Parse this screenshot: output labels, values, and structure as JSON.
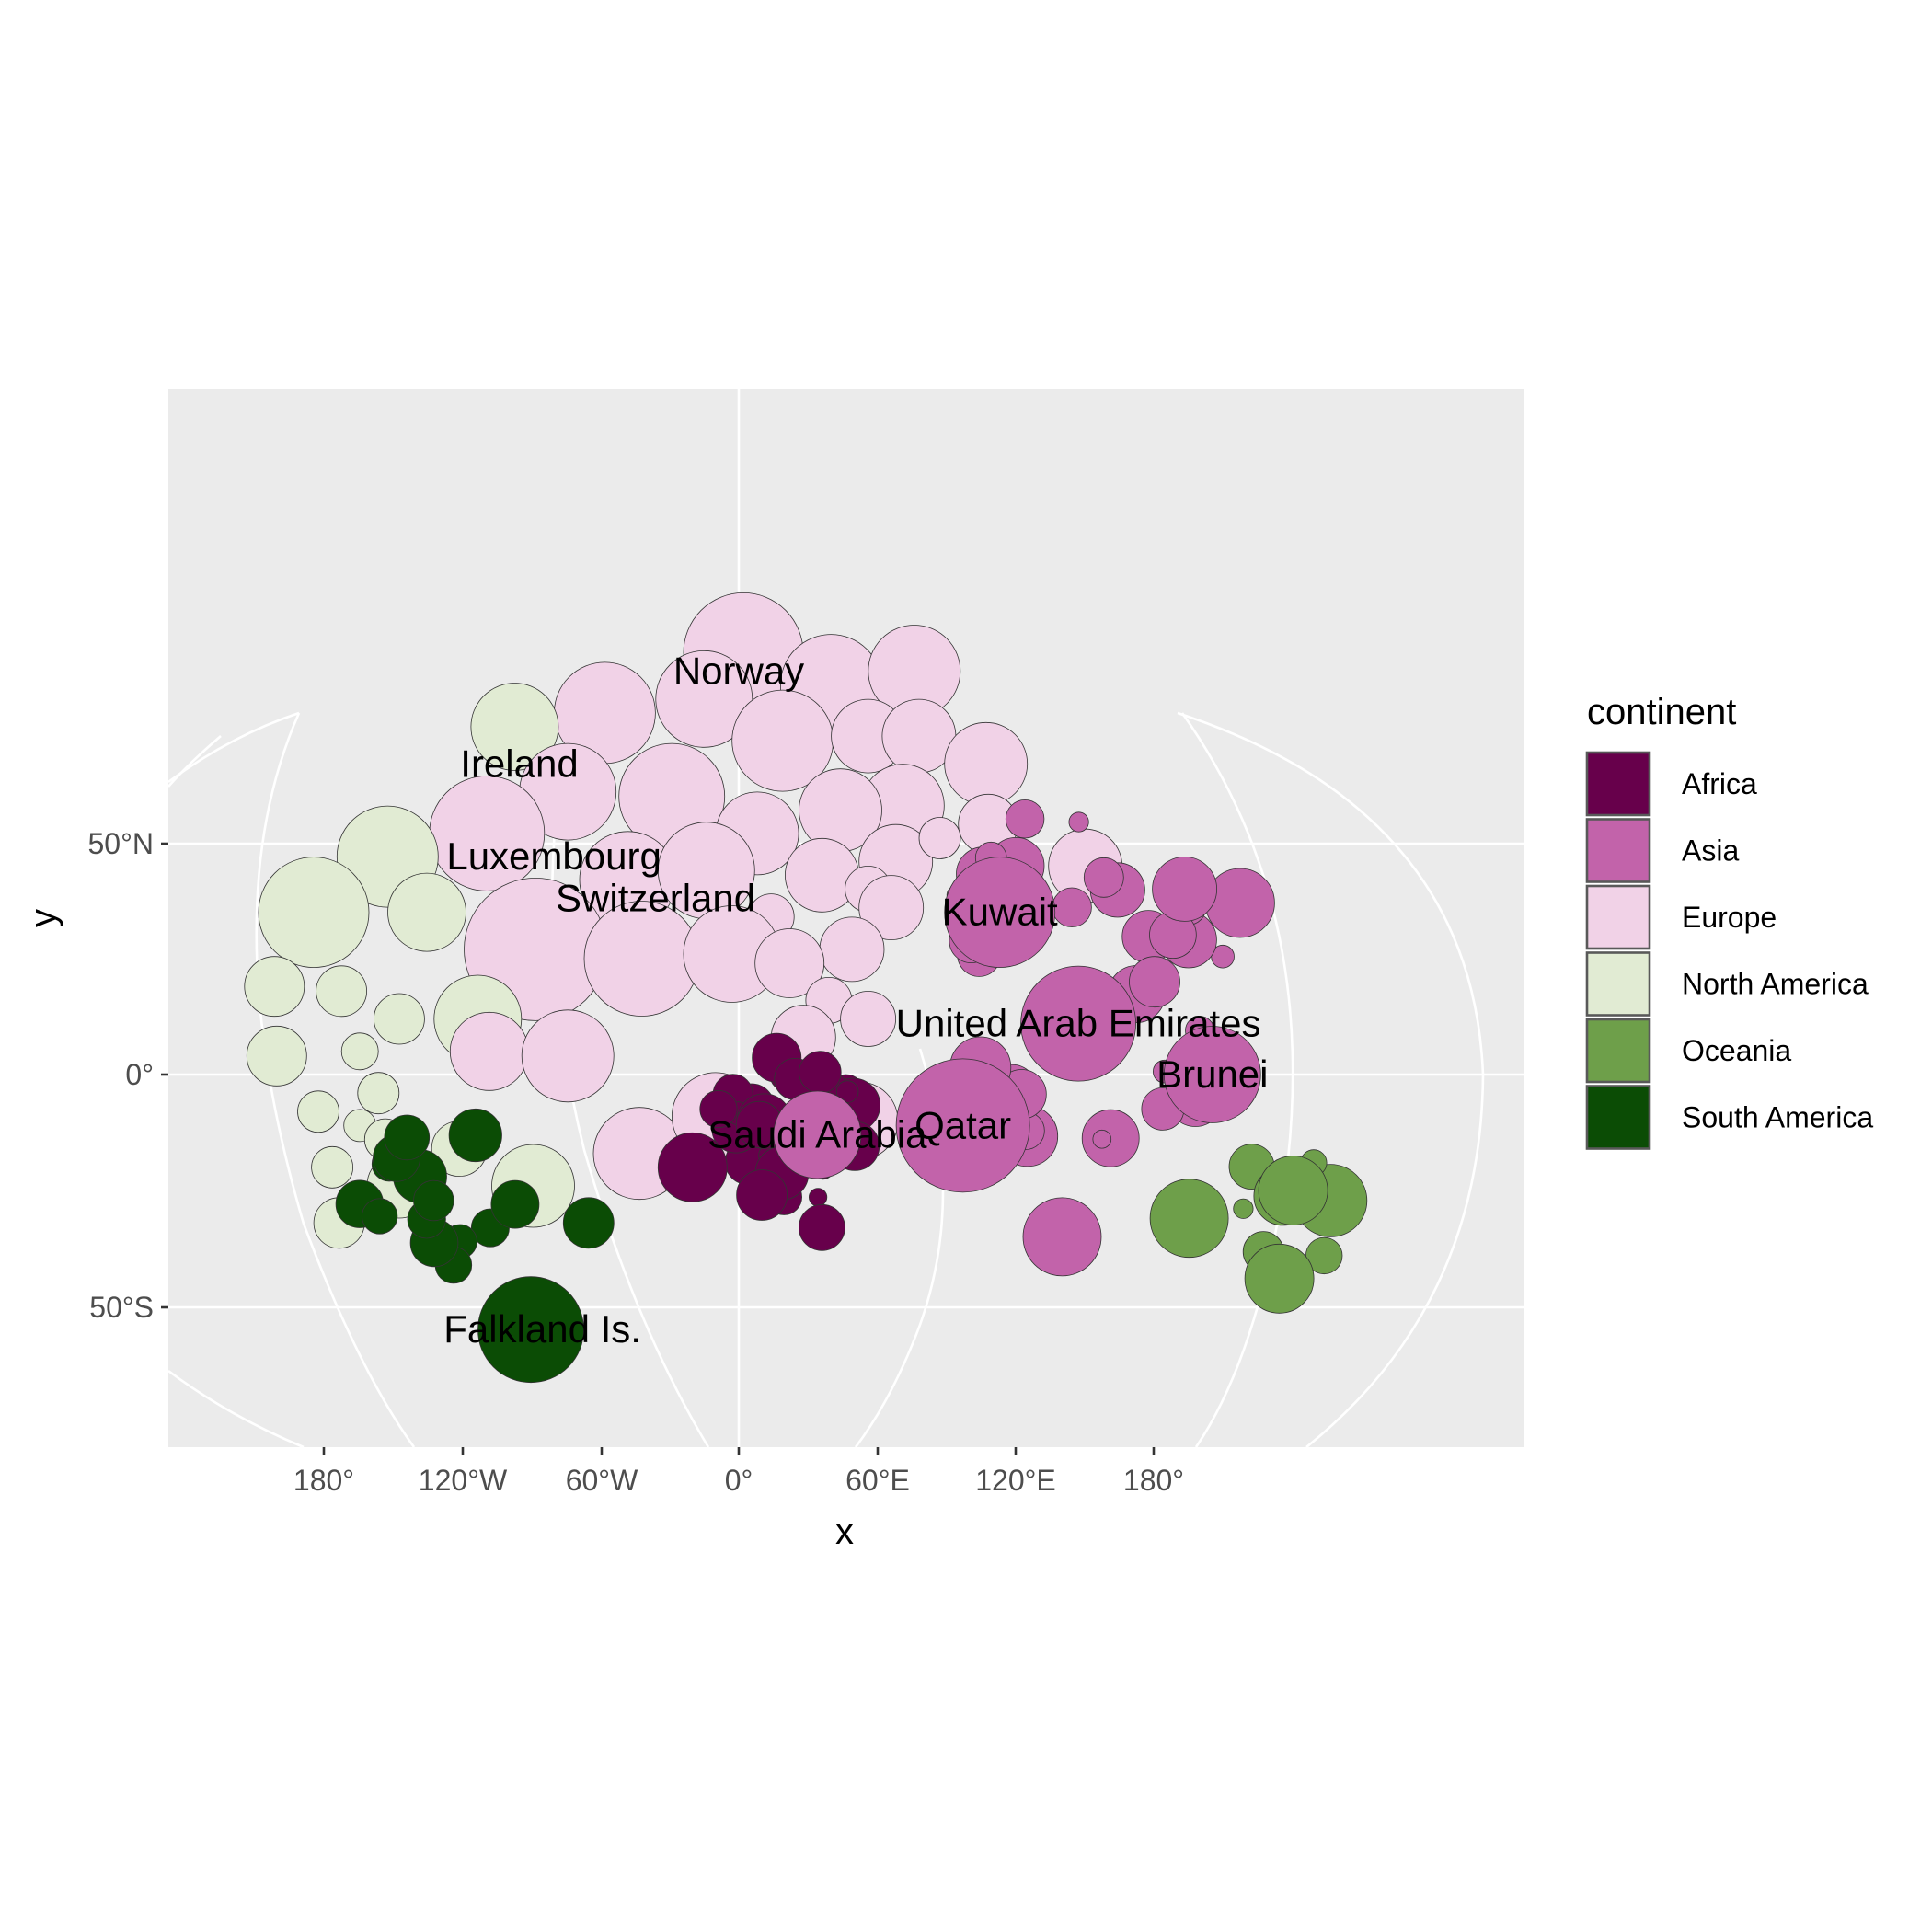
{
  "chart_data": {
    "type": "scatter",
    "subtype": "packed-bubble map (cartogram) on a curved world projection",
    "xlabel": "x",
    "ylabel": "y",
    "x_ticks": [
      "180°",
      "120°W",
      "60°W",
      "0°",
      "60°E",
      "120°E",
      "180°"
    ],
    "y_ticks": [
      "50°N",
      "0°",
      "50°S"
    ],
    "grid": true,
    "legend": {
      "title": "continent",
      "position": "right",
      "entries": [
        {
          "label": "Africa",
          "color": "#67004b"
        },
        {
          "label": "Asia",
          "color": "#c263aa"
        },
        {
          "label": "Europe",
          "color": "#f1d2e7"
        },
        {
          "label": "North America",
          "color": "#e1ebd3"
        },
        {
          "label": "Oceania",
          "color": "#6e9f4a"
        },
        {
          "label": "South America",
          "color": "#0b4c05"
        }
      ]
    },
    "labels": [
      {
        "text": "Norway",
        "x": 0,
        "y": 87
      },
      {
        "text": "Ireland",
        "x": -95,
        "y": 67
      },
      {
        "text": "Luxembourg",
        "x": -80,
        "y": 47
      },
      {
        "text": "Switzerland",
        "x": -36,
        "y": 38
      },
      {
        "text": "Kuwait",
        "x": 113,
        "y": 35
      },
      {
        "text": "United Arab Emirates",
        "x": 147,
        "y": 11
      },
      {
        "text": "Brunei",
        "x": 205,
        "y": 0
      },
      {
        "text": "Qatar",
        "x": 97,
        "y": -11
      },
      {
        "text": "Saudi Arabia",
        "x": 34,
        "y": -13
      },
      {
        "text": "Falkland Is.",
        "x": -85,
        "y": -55
      }
    ],
    "bubbles": [
      {
        "c": "Europe",
        "x": 2,
        "y": 91,
        "r": 26
      },
      {
        "c": "Europe",
        "x": 40,
        "y": 84,
        "r": 22
      },
      {
        "c": "Europe",
        "x": 76,
        "y": 87,
        "r": 20
      },
      {
        "c": "Europe",
        "x": -15,
        "y": 81,
        "r": 21
      },
      {
        "c": "Europe",
        "x": -58,
        "y": 78,
        "r": 22
      },
      {
        "c": "North America",
        "x": -97,
        "y": 75,
        "r": 19
      },
      {
        "c": "Europe",
        "x": 19,
        "y": 72,
        "r": 22
      },
      {
        "c": "Europe",
        "x": 56,
        "y": 73,
        "r": 16
      },
      {
        "c": "Europe",
        "x": 78,
        "y": 73,
        "r": 16
      },
      {
        "c": "Europe",
        "x": 107,
        "y": 67,
        "r": 18
      },
      {
        "c": "Europe",
        "x": -74,
        "y": 61,
        "r": 21
      },
      {
        "c": "Europe",
        "x": -29,
        "y": 60,
        "r": 23
      },
      {
        "c": "Europe",
        "x": 71,
        "y": 58,
        "r": 18
      },
      {
        "c": "Europe",
        "x": 44,
        "y": 57,
        "r": 18
      },
      {
        "c": "Europe",
        "x": -109,
        "y": 52,
        "r": 25
      },
      {
        "c": "North America",
        "x": -152,
        "y": 47,
        "r": 22
      },
      {
        "c": "Europe",
        "x": 8,
        "y": 52,
        "r": 18
      },
      {
        "c": "Europe",
        "x": 108,
        "y": 54,
        "r": 13
      },
      {
        "c": "Europe",
        "x": 68,
        "y": 46,
        "r": 16
      },
      {
        "c": "Europe",
        "x": 87,
        "y": 51,
        "r": 9
      },
      {
        "c": "Europe",
        "x": -48,
        "y": 42,
        "r": 21
      },
      {
        "c": "Europe",
        "x": -14,
        "y": 44,
        "r": 21
      },
      {
        "c": "Europe",
        "x": 36,
        "y": 43,
        "r": 16
      },
      {
        "c": "Europe",
        "x": 56,
        "y": 40,
        "r": 10
      },
      {
        "c": "Europe",
        "x": 150,
        "y": 45,
        "r": 16
      },
      {
        "c": "Europe",
        "x": 66,
        "y": 36,
        "r": 14
      },
      {
        "c": "Europe",
        "x": 14,
        "y": 34,
        "r": 10
      },
      {
        "c": "North America",
        "x": -184,
        "y": 35,
        "r": 24
      },
      {
        "c": "North America",
        "x": -135,
        "y": 35,
        "r": 17
      },
      {
        "c": "Europe",
        "x": -88,
        "y": 27,
        "r": 31
      },
      {
        "c": "Europe",
        "x": -42,
        "y": 25,
        "r": 25
      },
      {
        "c": "Europe",
        "x": -3,
        "y": 26,
        "r": 21
      },
      {
        "c": "Europe",
        "x": 49,
        "y": 27,
        "r": 14
      },
      {
        "c": "Europe",
        "x": 22,
        "y": 24,
        "r": 15
      },
      {
        "c": "Europe",
        "x": 39,
        "y": 16,
        "r": 10
      },
      {
        "c": "North America",
        "x": -172,
        "y": 18,
        "r": 11
      },
      {
        "c": "North America",
        "x": -201,
        "y": 19,
        "r": 13
      },
      {
        "c": "North America",
        "x": -147,
        "y": 12,
        "r": 11
      },
      {
        "c": "North America",
        "x": -113,
        "y": 12,
        "r": 19
      },
      {
        "c": "Europe",
        "x": 28,
        "y": 8,
        "r": 14
      },
      {
        "c": "Europe",
        "x": 56,
        "y": 12,
        "r": 12
      },
      {
        "c": "Europe",
        "x": -108,
        "y": 5,
        "r": 17
      },
      {
        "c": "Europe",
        "x": -74,
        "y": 4,
        "r": 20
      },
      {
        "c": "North America",
        "x": -164,
        "y": 5,
        "r": 8
      },
      {
        "c": "North America",
        "x": -200,
        "y": 4,
        "r": 13
      },
      {
        "c": "North America",
        "x": -156,
        "y": -4,
        "r": 9
      },
      {
        "c": "North America",
        "x": -182,
        "y": -8,
        "r": 9
      },
      {
        "c": "Europe",
        "x": -43,
        "y": -17,
        "r": 20
      },
      {
        "c": "Europe",
        "x": -10,
        "y": -9,
        "r": 19
      },
      {
        "c": "Europe",
        "x": 52,
        "y": -10,
        "r": 17
      },
      {
        "c": "North America",
        "x": -164,
        "y": -11,
        "r": 7
      },
      {
        "c": "North America",
        "x": -153,
        "y": -14,
        "r": 9
      },
      {
        "c": "North America",
        "x": -121,
        "y": -16,
        "r": 12
      },
      {
        "c": "North America",
        "x": -176,
        "y": -20,
        "r": 9
      },
      {
        "c": "North America",
        "x": -147,
        "y": -24,
        "r": 14
      },
      {
        "c": "North America",
        "x": -89,
        "y": -24,
        "r": 18
      },
      {
        "c": "North America",
        "x": -173,
        "y": -32,
        "r": 11
      }
    ]
  }
}
